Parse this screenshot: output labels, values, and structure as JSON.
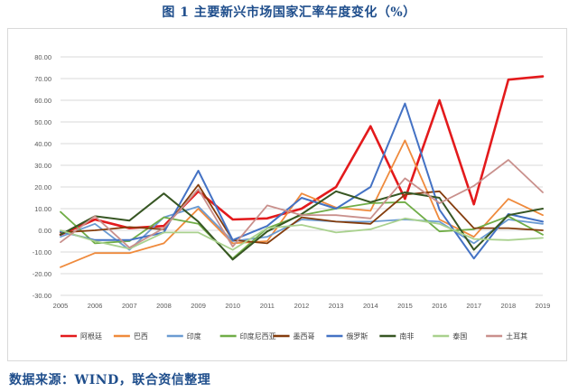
{
  "figure": {
    "title": "图 1  主要新兴市场国家汇率年度变化（%）",
    "source": "数据来源：WIND，联合资信整理"
  },
  "chart_data": {
    "type": "line",
    "x": [
      "2005",
      "2006",
      "2007",
      "2008",
      "2009",
      "2010",
      "2011",
      "2012",
      "2013",
      "2014",
      "2015",
      "2016",
      "2017",
      "2018",
      "2019"
    ],
    "ylim": [
      -30,
      80
    ],
    "yticks": [
      "80.00",
      "70.00",
      "60.00",
      "50.00",
      "40.00",
      "30.00",
      "20.00",
      "10.00",
      "0.00",
      "-10.00",
      "-20.00",
      "-30.00"
    ],
    "ytick_values": [
      80,
      70,
      60,
      50,
      40,
      30,
      20,
      10,
      0,
      -10,
      -20,
      -30
    ],
    "grid": true,
    "legend_position": "bottom",
    "series": [
      {
        "name": "阿根廷",
        "color": "#e31a1c",
        "width": 2.6,
        "values": [
          -2,
          5,
          1,
          2,
          18,
          5,
          5.5,
          10,
          20,
          48,
          14.5,
          60,
          12,
          69.5,
          71
        ]
      },
      {
        "name": "巴西",
        "color": "#ef8a3c",
        "width": 1.8,
        "values": [
          -17,
          -10.5,
          -10.5,
          -6,
          10,
          -6,
          -5,
          17,
          10.5,
          9,
          41.5,
          5,
          -3,
          14.5,
          7
        ]
      },
      {
        "name": "印度",
        "color": "#6b9bd2",
        "width": 1.8,
        "values": [
          -3,
          3,
          -9,
          6,
          11,
          -5,
          -3,
          5,
          4,
          4,
          5,
          4,
          -6,
          5,
          3
        ]
      },
      {
        "name": "印度尼西亚",
        "color": "#70ad47",
        "width": 1.8,
        "values": [
          8.5,
          -6,
          -5,
          6,
          3,
          -13,
          1,
          7,
          10,
          12.5,
          13,
          -0.5,
          0.5,
          6.5,
          -2
        ]
      },
      {
        "name": "墨西哥",
        "color": "#843c0c",
        "width": 1.8,
        "values": [
          -1,
          0,
          1.5,
          0.5,
          21,
          -4.5,
          -6,
          6,
          4,
          3,
          16.5,
          18,
          1,
          1,
          0
        ]
      },
      {
        "name": "俄罗斯",
        "color": "#4472c4",
        "width": 2.0,
        "values": [
          -0.5,
          -4.5,
          -4.5,
          -1,
          27.5,
          -4.5,
          2,
          15,
          10,
          20,
          58.5,
          9.5,
          -13,
          7.5,
          4
        ]
      },
      {
        "name": "南非",
        "color": "#375623",
        "width": 2.0,
        "values": [
          -2,
          6.5,
          4.5,
          17,
          4,
          -13.5,
          -0.5,
          7.5,
          18,
          13,
          17.5,
          15,
          -9,
          7,
          10
        ]
      },
      {
        "name": "泰国",
        "color": "#a9d18e",
        "width": 1.8,
        "values": [
          0,
          -5,
          -8.5,
          -1,
          -1,
          -9,
          1,
          2.5,
          -1,
          0.5,
          5.5,
          3,
          -4,
          -4.5,
          -3.5
        ]
      },
      {
        "name": "土耳其",
        "color": "#c9908c",
        "width": 1.8,
        "values": [
          -5.5,
          6.5,
          -8,
          1,
          19,
          -7.5,
          11.5,
          7,
          7,
          5.5,
          24,
          12.5,
          20.5,
          32.5,
          17.5
        ]
      }
    ]
  }
}
